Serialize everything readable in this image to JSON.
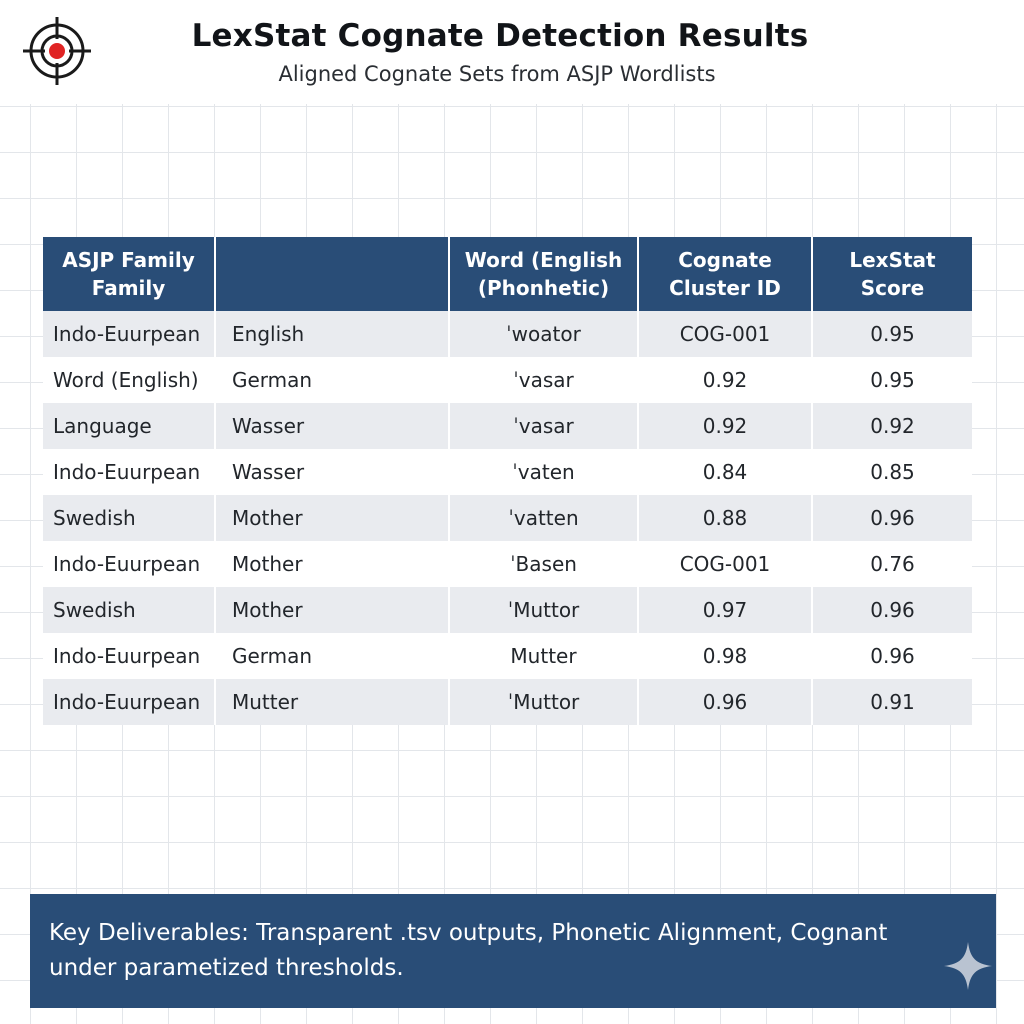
{
  "header": {
    "title": "LexStat Cognate Detection Results",
    "subtitle": "Aligned Cognate Sets from ASJP Wordlists",
    "logo_icon": "target-icon",
    "accent_color": "#e02424"
  },
  "table": {
    "header_color": "#294d77",
    "columns": [
      "ASJP Family Family",
      "",
      "Word (English (Phonhetic)",
      "Cognate Cluster ID",
      "LexStat Score"
    ],
    "rows": [
      [
        "Indo-Euurpean",
        "English",
        "ˈwoator",
        "COG-001",
        "0.95"
      ],
      [
        "Word (English)",
        "German",
        "ˈvasar",
        "0.92",
        "0.95"
      ],
      [
        "Language",
        "Wasser",
        "ˈvasar",
        "0.92",
        "0.92"
      ],
      [
        "Indo-Euurpean",
        "Wasser",
        "ˈvaten",
        "0.84",
        "0.85"
      ],
      [
        "Swedish",
        "Mother",
        "ˈvatten",
        "0.88",
        "0.96"
      ],
      [
        "Indo-Euurpean",
        "Mother",
        "ˈBasen",
        "COG-001",
        "0.76"
      ],
      [
        "Swedish",
        "Mother",
        "ˈMuttor",
        "0.97",
        "0.96"
      ],
      [
        "Indo-Euurpean",
        "German",
        "Mutter",
        "0.98",
        "0.96"
      ],
      [
        "Indo-Euurpean",
        "Mutter",
        "ˈMuttor",
        "0.96",
        "0.91"
      ]
    ]
  },
  "banner": {
    "text": "Key Deliverables: Transparent .tsv outputs, Phonetic Alignment, Cognant under parametized thresholds.",
    "icon": "sparkle-icon",
    "color": "#294d77"
  }
}
